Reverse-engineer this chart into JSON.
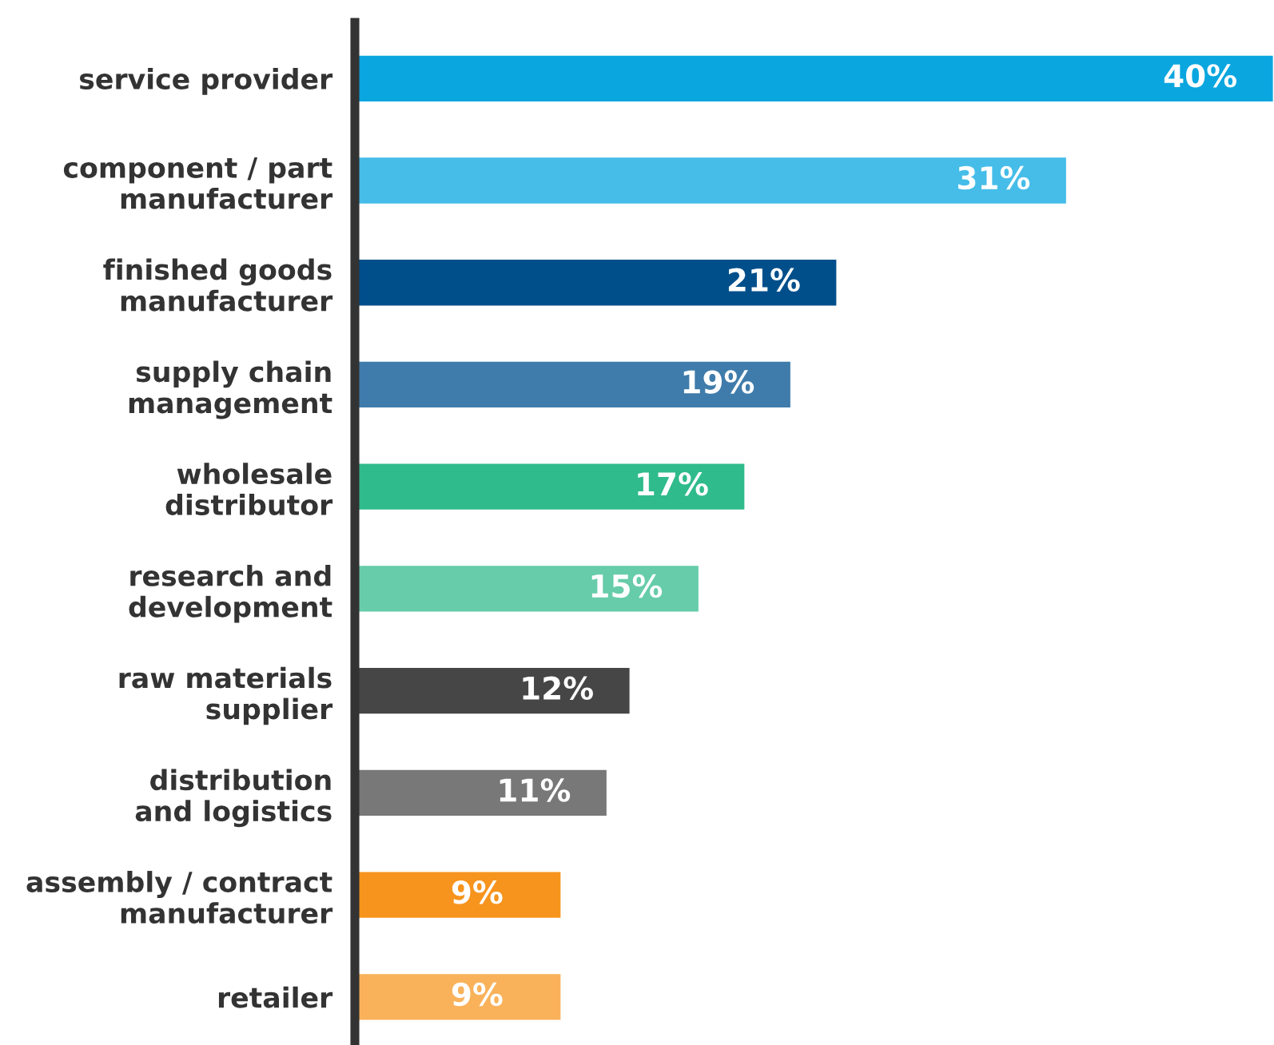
{
  "chart_data": {
    "type": "bar",
    "orientation": "horizontal",
    "categories": [
      "service provider",
      "component / part\nmanufacturer",
      "finished goods\nmanufacturer",
      "supply chain\nmanagement",
      "wholesale\ndistributor",
      "research and\ndevelopment",
      "raw materials\nsupplier",
      "distribution\nand logistics",
      "assembly / contract\nmanufacturer",
      "retailer"
    ],
    "values": [
      40,
      31,
      21,
      19,
      17,
      15,
      12,
      11,
      9,
      9
    ],
    "value_labels": [
      "40%",
      "31%",
      "21%",
      "19%",
      "17%",
      "15%",
      "12%",
      "11%",
      "9%",
      "9%"
    ],
    "colors": [
      "#0aa6df",
      "#45bde8",
      "#004f8b",
      "#3f7cab",
      "#2fbb8b",
      "#66cca9",
      "#464646",
      "#787878",
      "#f7941d",
      "#f9b25a"
    ],
    "grid": false,
    "legend": false
  }
}
